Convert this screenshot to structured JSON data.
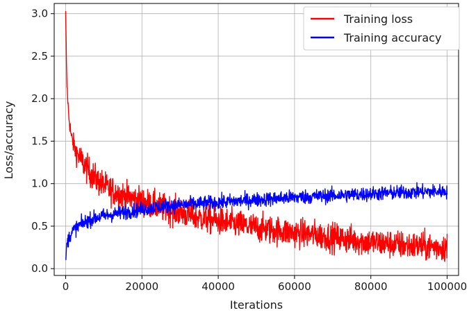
{
  "chart_data": {
    "type": "line",
    "title": "",
    "xlabel": "Iterations",
    "ylabel": "Loss/accuracy",
    "xlim": [
      -3000,
      103000
    ],
    "ylim": [
      -0.08,
      3.12
    ],
    "xticks": [
      0,
      20000,
      40000,
      60000,
      80000,
      100000
    ],
    "xtick_labels": [
      "0",
      "20000",
      "40000",
      "60000",
      "80000",
      "100000"
    ],
    "yticks": [
      0.0,
      0.5,
      1.0,
      1.5,
      2.0,
      2.5,
      3.0
    ],
    "ytick_labels": [
      "0.0",
      "0.5",
      "1.0",
      "1.5",
      "2.0",
      "2.5",
      "3.0"
    ],
    "grid": true,
    "legend_position": "top-right",
    "series": [
      {
        "name": "Training loss",
        "color": "#ff0000",
        "noise": 0.09,
        "x": [
          0,
          300,
          800,
          1500,
          2500,
          4000,
          6000,
          8000,
          10000,
          12000,
          15000,
          20000,
          25000,
          30000,
          35000,
          40000,
          45000,
          50000,
          55000,
          60000,
          65000,
          70000,
          75000,
          80000,
          85000,
          90000,
          95000,
          100000
        ],
        "values": [
          3.0,
          2.2,
          1.8,
          1.55,
          1.4,
          1.28,
          1.15,
          1.05,
          0.98,
          0.92,
          0.86,
          0.79,
          0.72,
          0.66,
          0.6,
          0.56,
          0.52,
          0.48,
          0.45,
          0.42,
          0.4,
          0.37,
          0.34,
          0.31,
          0.29,
          0.27,
          0.26,
          0.25
        ]
      },
      {
        "name": "Training accuracy",
        "color": "#0000ff",
        "noise": 0.045,
        "x": [
          0,
          300,
          800,
          1500,
          2500,
          4000,
          6000,
          8000,
          10000,
          15000,
          20000,
          25000,
          30000,
          40000,
          50000,
          60000,
          70000,
          80000,
          90000,
          100000
        ],
        "values": [
          0.08,
          0.28,
          0.36,
          0.42,
          0.47,
          0.52,
          0.57,
          0.6,
          0.62,
          0.66,
          0.7,
          0.73,
          0.75,
          0.78,
          0.81,
          0.84,
          0.86,
          0.88,
          0.9,
          0.91
        ]
      }
    ]
  }
}
